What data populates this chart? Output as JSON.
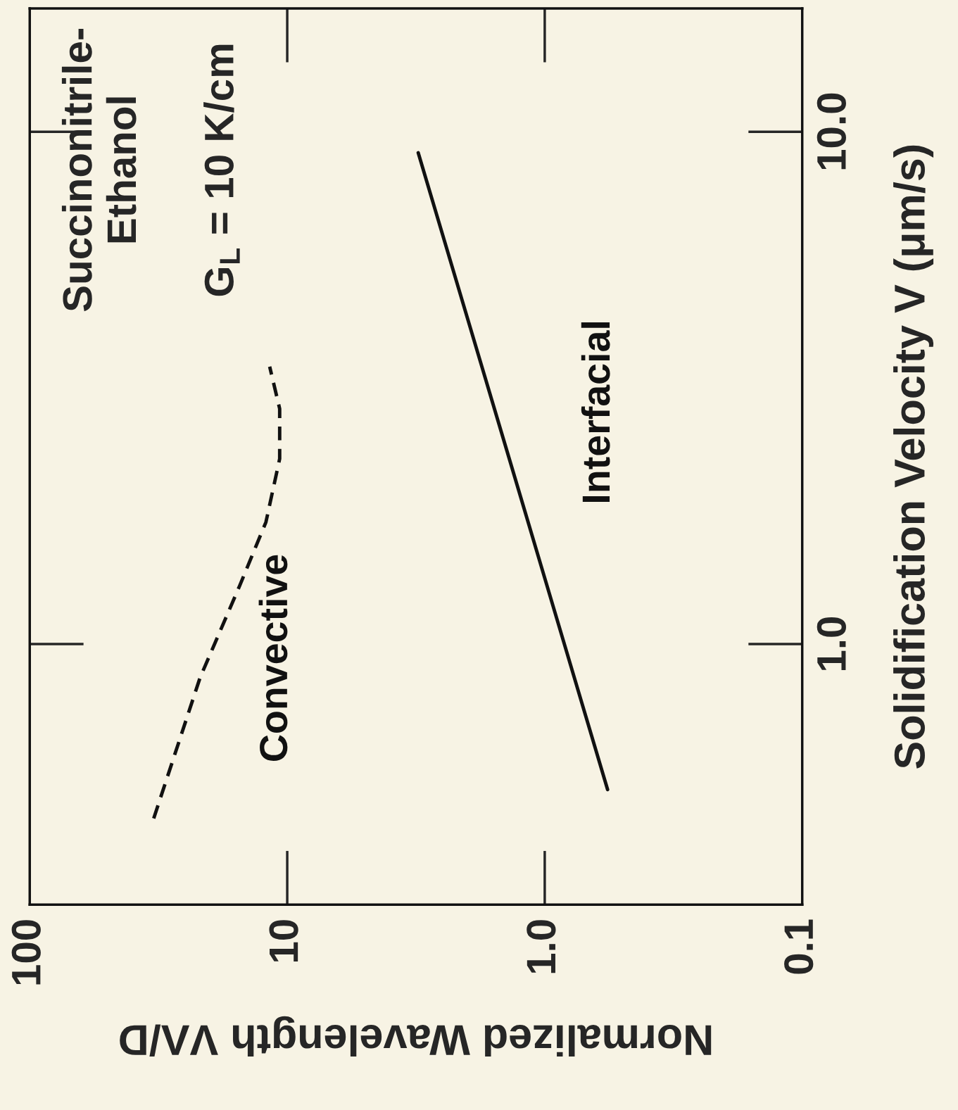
{
  "chart_data": {
    "type": "line",
    "xlabel": "Normalized Wavelength VΛ/D",
    "ylabel": "Solidification Velocity V (μm/s)",
    "log": "xy",
    "xlim": [
      100,
      0.1
    ],
    "xticks": [
      100,
      10,
      {
        "value": 1,
        "label": "1.0"
      },
      0.1
    ],
    "ylim": [
      0.31,
      17.4
    ],
    "yticks": [
      {
        "value": 1,
        "label": "1.0"
      },
      {
        "value": 10,
        "label": "10.0"
      }
    ],
    "grid": false,
    "series": [
      {
        "name": "Convective",
        "color": "#111111",
        "line_style": "dashed",
        "x": [
          33,
          21.8,
          15.3,
          12.1,
          10.7,
          10.7,
          11.7
        ],
        "values": [
          0.457,
          0.86,
          1.3,
          1.73,
          2.3,
          2.88,
          3.48
        ]
      },
      {
        "name": "Interfacial",
        "color": "#111111",
        "line_style": "solid",
        "x": [
          3.1,
          1.33,
          0.57
        ],
        "values": [
          9.1,
          2.18,
          0.52
        ]
      }
    ],
    "annotations": [
      "Succinonitrile-\nEthanol",
      "G$_{L}$ = 10 K/cm"
    ]
  }
}
